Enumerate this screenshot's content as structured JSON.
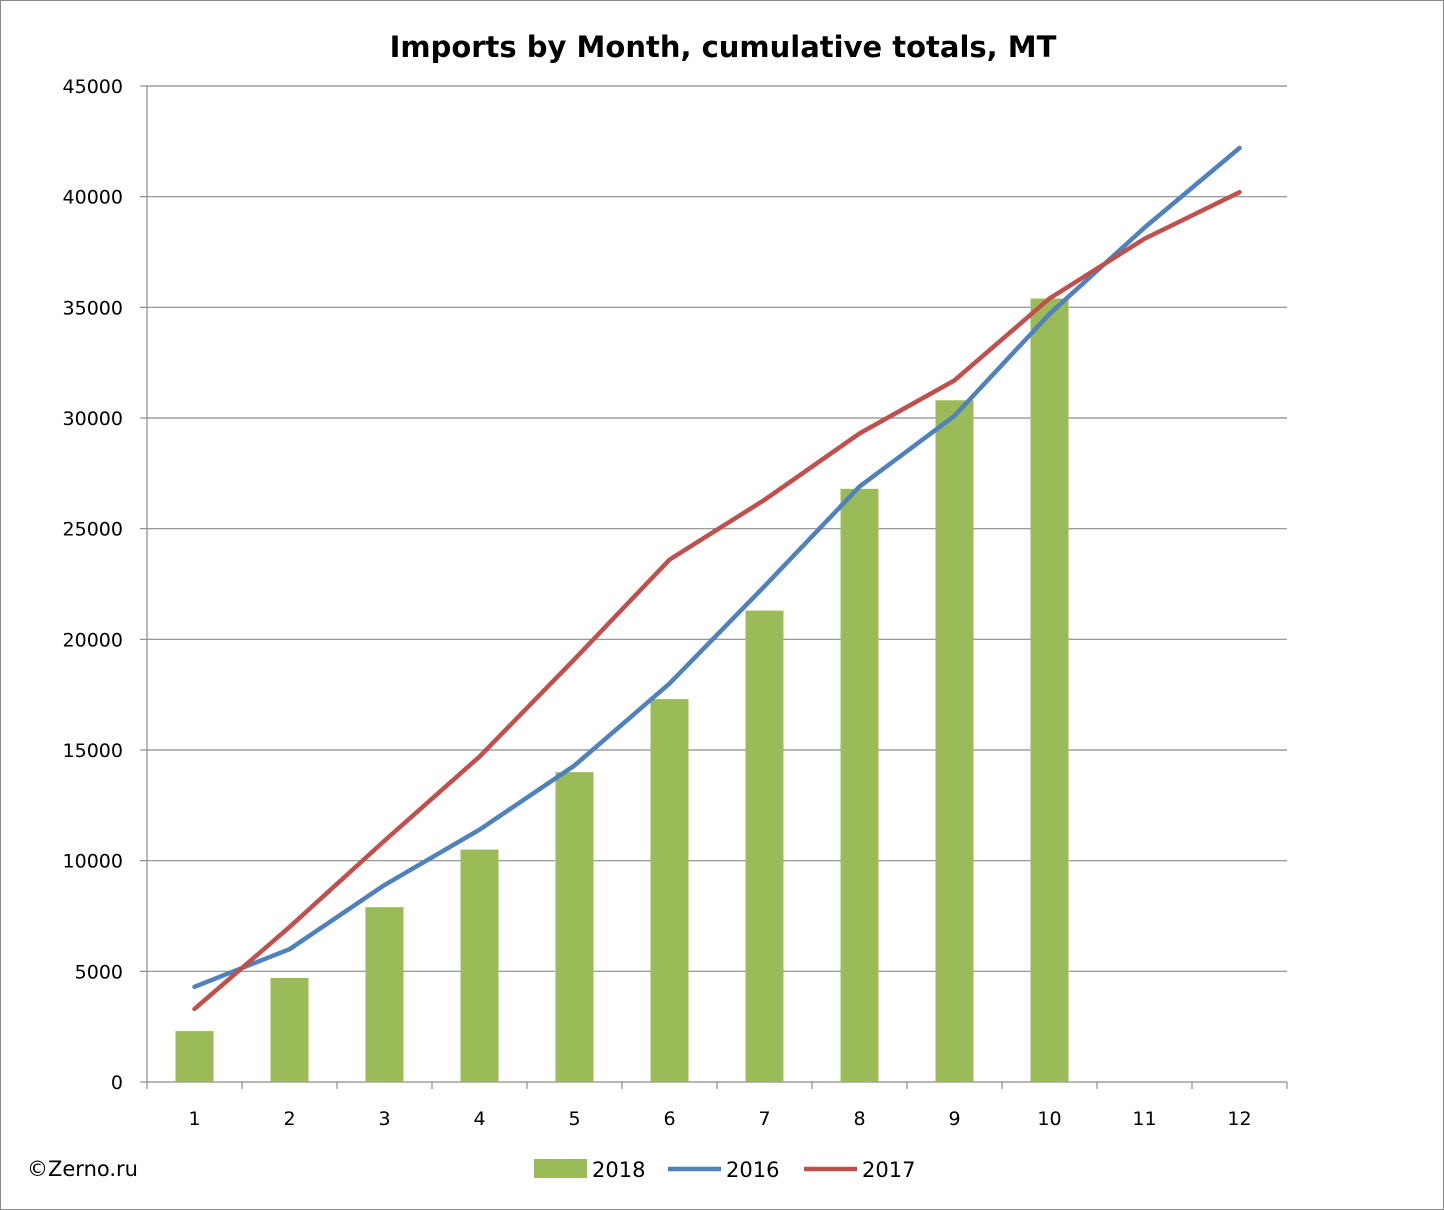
{
  "chart_data": {
    "type": "bar+line",
    "title": "Imports by Month, cumulative totals, MT",
    "xlabel": "",
    "ylabel": "",
    "categories": [
      "1",
      "2",
      "3",
      "4",
      "5",
      "6",
      "7",
      "8",
      "9",
      "10",
      "11",
      "12"
    ],
    "ylim": [
      0,
      45000
    ],
    "yticks": [
      0,
      5000,
      10000,
      15000,
      20000,
      25000,
      30000,
      35000,
      40000,
      45000
    ],
    "grid": true,
    "legend_position": "bottom",
    "series": [
      {
        "name": "2018",
        "kind": "bar",
        "color": "#9bbb59",
        "values": [
          2300,
          4700,
          7900,
          10500,
          14000,
          17300,
          21300,
          26800,
          30800,
          35400,
          null,
          null
        ]
      },
      {
        "name": "2016",
        "kind": "line",
        "color": "#4f81bd",
        "values": [
          4300,
          6000,
          8900,
          11400,
          14300,
          18000,
          22400,
          26900,
          30100,
          34700,
          38600,
          42200
        ]
      },
      {
        "name": "2017",
        "kind": "line",
        "color": "#c0504d",
        "values": [
          3300,
          7000,
          10900,
          14700,
          19100,
          23600,
          26300,
          29300,
          31700,
          35400,
          38100,
          40200
        ]
      }
    ]
  },
  "credit": "©Zerno.ru"
}
